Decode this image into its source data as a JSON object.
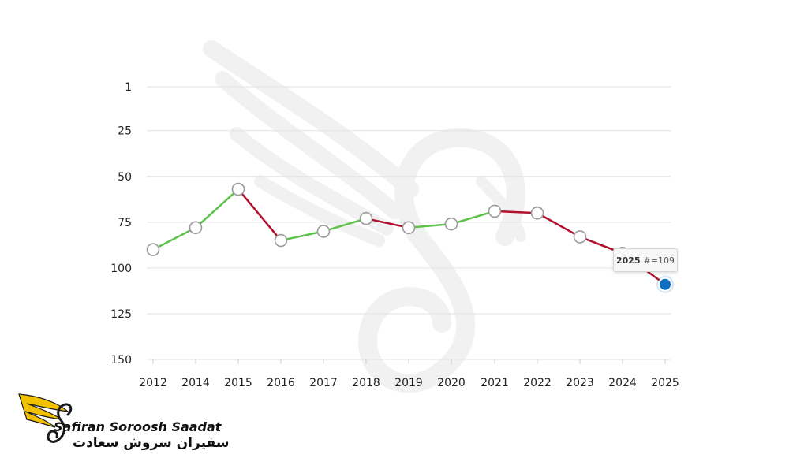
{
  "chart_data": {
    "type": "line",
    "title": "",
    "xlabel": "",
    "ylabel": "",
    "categories": [
      "2012",
      "2014",
      "2015",
      "2016",
      "2017",
      "2018",
      "2019",
      "2020",
      "2021",
      "2022",
      "2023",
      "2024",
      "2025"
    ],
    "values": [
      90,
      78,
      57,
      85,
      80,
      73,
      78,
      76,
      69,
      70,
      83,
      92,
      109
    ],
    "y_ticks": [
      1,
      25,
      50,
      75,
      100,
      125,
      150
    ],
    "ylim": [
      150,
      1
    ],
    "y_inverted": true,
    "line_colors": {
      "improving": "#5cc24a",
      "declining": "#b0112e"
    },
    "highlight_color": "#0d6ec2",
    "tooltip": {
      "year": "2025",
      "value_text": "#=109"
    }
  },
  "brand": {
    "name_latin": "Safiran Soroosh Saadat",
    "name_farsi": "سفیران سروش سعادت",
    "accent_color": "#f2c200",
    "watermark": "swan-wing-icon"
  }
}
